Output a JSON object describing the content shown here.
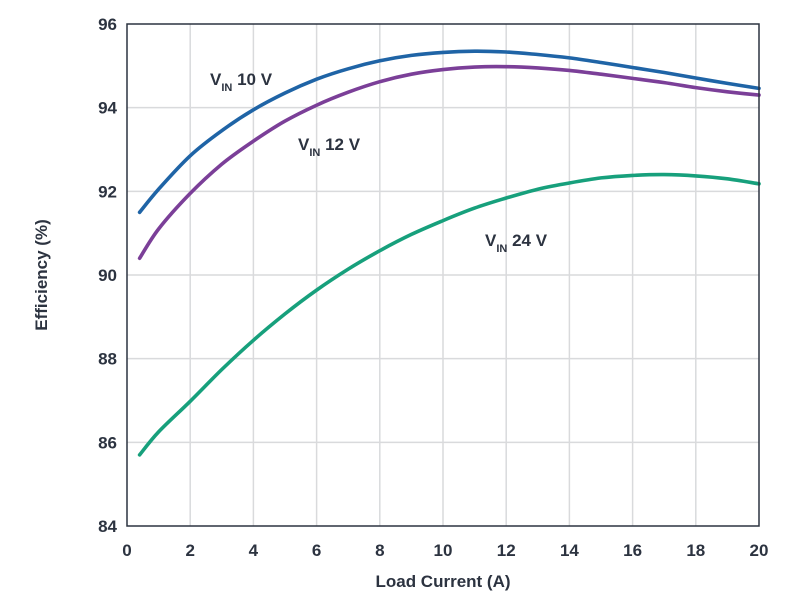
{
  "chart_data": {
    "type": "line",
    "title": "",
    "xlabel": "Load Current (A)",
    "ylabel": "Efficiency (%)",
    "xlim": [
      0,
      20
    ],
    "ylim": [
      84,
      96
    ],
    "xticks": [
      0,
      2,
      4,
      6,
      8,
      10,
      12,
      14,
      16,
      18,
      20
    ],
    "yticks": [
      84,
      86,
      88,
      90,
      92,
      94,
      96
    ],
    "grid": true,
    "legend": "none",
    "series": [
      {
        "name": "VIN 10 V",
        "label_main": "V",
        "label_sub": "IN",
        "label_tail": " 10 V",
        "color": "#1f64a6",
        "x": [
          0.4,
          1,
          2,
          3,
          4,
          5,
          6,
          7,
          8,
          9,
          10,
          11,
          12,
          13,
          14,
          15,
          16,
          17,
          18,
          19,
          20
        ],
        "y": [
          91.5,
          92.05,
          92.85,
          93.45,
          93.95,
          94.35,
          94.68,
          94.93,
          95.12,
          95.25,
          95.32,
          95.35,
          95.33,
          95.27,
          95.19,
          95.08,
          94.96,
          94.84,
          94.71,
          94.58,
          94.46
        ]
      },
      {
        "name": "VIN 12 V",
        "label_main": "V",
        "label_sub": "IN",
        "label_tail": " 12 V",
        "color": "#7b3f98",
        "x": [
          0.4,
          1,
          2,
          3,
          4,
          5,
          6,
          7,
          8,
          9,
          10,
          11,
          12,
          13,
          14,
          15,
          16,
          17,
          18,
          19,
          20
        ],
        "y": [
          90.4,
          91.1,
          91.95,
          92.65,
          93.2,
          93.68,
          94.06,
          94.37,
          94.62,
          94.8,
          94.91,
          94.97,
          94.98,
          94.95,
          94.89,
          94.8,
          94.7,
          94.6,
          94.48,
          94.38,
          94.3
        ]
      },
      {
        "name": "VIN 24 V",
        "label_main": "V",
        "label_sub": "IN",
        "label_tail": " 24 V",
        "color": "#17a07c",
        "x": [
          0.4,
          1,
          2,
          3,
          4,
          5,
          6,
          7,
          8,
          9,
          10,
          11,
          12,
          13,
          14,
          15,
          16,
          17,
          18,
          19,
          20
        ],
        "y": [
          85.7,
          86.25,
          86.98,
          87.74,
          88.44,
          89.07,
          89.64,
          90.14,
          90.58,
          90.97,
          91.3,
          91.6,
          91.84,
          92.05,
          92.2,
          92.32,
          92.38,
          92.4,
          92.37,
          92.3,
          92.18
        ]
      }
    ]
  }
}
